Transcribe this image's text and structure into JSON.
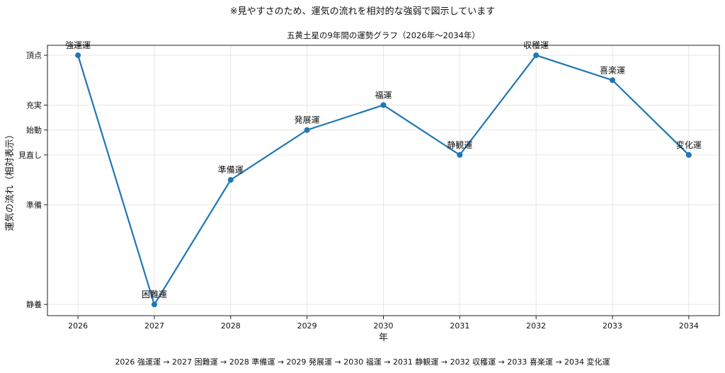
{
  "figure_title": "※見やすさのため、運気の流れを相対的な強弱で図示しています",
  "footnote": "2026 強運運 → 2027 困難運 → 2028 準備運 → 2029 発展運 → 2030 福運 → 2031 静観運 → 2032 収穫運 → 2033 喜楽運 → 2034 変化運",
  "colors": {
    "line": "#1f77b4",
    "grid": "#e6e6e6",
    "axis": "#222222"
  },
  "chart_data": {
    "type": "line",
    "title": "五黄土星の9年間の運勢グラフ（2026年〜2034年）",
    "xlabel": "年",
    "ylabel": "運気の流れ（相対表示）",
    "x": [
      2026,
      2027,
      2028,
      2029,
      2030,
      2031,
      2032,
      2033,
      2034
    ],
    "y": [
      10,
      0,
      5,
      7,
      8,
      6,
      10,
      9,
      6
    ],
    "point_labels": [
      "強運運",
      "困難運",
      "準備運",
      "発展運",
      "福運",
      "静観運",
      "収穫運",
      "喜楽運",
      "変化運"
    ],
    "xlim": [
      2025.6,
      2034.4
    ],
    "ylim": [
      -0.45,
      10.4
    ],
    "y_ticks": [
      {
        "value": 0,
        "label": "静養"
      },
      {
        "value": 4,
        "label": "準備"
      },
      {
        "value": 6,
        "label": "見直し"
      },
      {
        "value": 7,
        "label": "始動"
      },
      {
        "value": 8,
        "label": "充実"
      },
      {
        "value": 10,
        "label": "頂点"
      }
    ],
    "grid": true
  }
}
